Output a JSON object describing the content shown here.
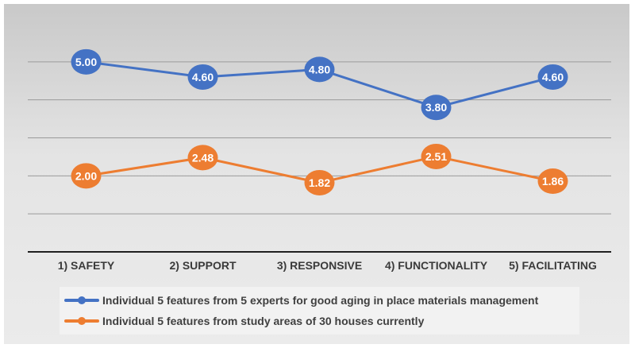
{
  "chart_data": {
    "type": "line",
    "categories": [
      "1) SAFETY",
      "2) SUPPORT",
      "3) RESPONSIVE",
      "4) FUNCTIONALITY",
      "5) FACILITATING"
    ],
    "series": [
      {
        "name": "Individual 5 features from 5 experts for good aging in place materials management",
        "values": [
          5.0,
          4.6,
          4.8,
          3.8,
          4.6
        ],
        "labels": [
          "5.00",
          "4.60",
          "4.80",
          "3.80",
          "4.60"
        ],
        "color": "#4472c4"
      },
      {
        "name": "Individual 5 features from study areas of 30 houses currently",
        "values": [
          2.0,
          2.48,
          1.82,
          2.51,
          1.86
        ],
        "labels": [
          "2.00",
          "2.48",
          "1.82",
          "2.51",
          "1.86"
        ],
        "color": "#ed7d31"
      }
    ],
    "ylim": [
      0,
      6
    ],
    "gridlines": [
      1,
      2,
      3,
      4,
      5
    ],
    "grid": true,
    "y_tick_labels_shown": false,
    "legend_position": "bottom",
    "background_color": "#dcdcdc"
  }
}
